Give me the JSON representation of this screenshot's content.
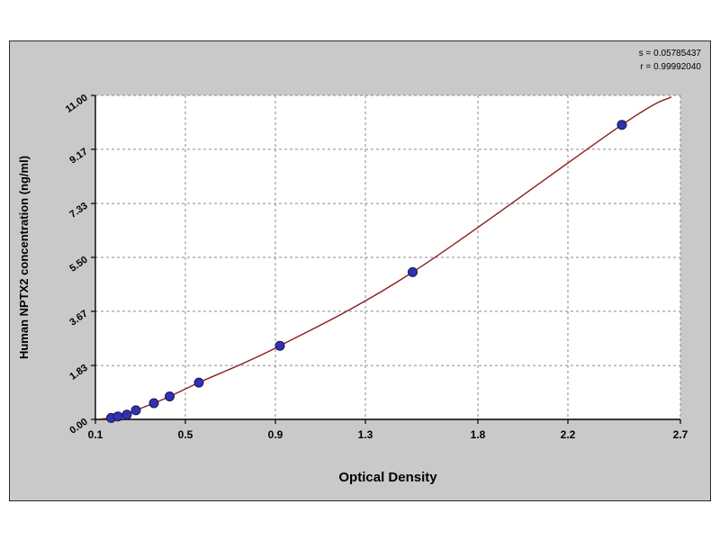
{
  "chart_data": {
    "type": "scatter",
    "title": "",
    "xlabel": "Optical Density",
    "ylabel": "Human NPTX2 concentration (ng/ml)",
    "xlim": [
      0.1,
      2.7
    ],
    "ylim": [
      0,
      11
    ],
    "x_ticks": [
      "0.1",
      "0.5",
      "0.9",
      "1.3",
      "1.8",
      "2.2",
      "2.7"
    ],
    "y_ticks": [
      "0.00",
      "1.83",
      "3.67",
      "5.50",
      "7.33",
      "9.17",
      "11.00"
    ],
    "grid": true,
    "legend": "none",
    "annotations": [
      "s = 0.05785437",
      "r = 0.99992040"
    ],
    "points": [
      [
        0.17,
        0.05
      ],
      [
        0.2,
        0.1
      ],
      [
        0.24,
        0.16
      ],
      [
        0.28,
        0.31
      ],
      [
        0.36,
        0.55
      ],
      [
        0.43,
        0.78
      ],
      [
        0.56,
        1.25
      ],
      [
        0.92,
        2.5
      ],
      [
        1.51,
        5.0
      ],
      [
        2.44,
        10.0
      ]
    ],
    "curve_start": [
      0.13,
      0.02
    ],
    "curve_extend": [
      2.66,
      10.95
    ],
    "colors": {
      "point": "#3232b0",
      "point_stroke": "#17175e",
      "curve": "#8b1d1d",
      "grid": "#8a8a8a",
      "panel_bg": "#c9c9c9",
      "plot_bg": "#ffffff"
    }
  }
}
